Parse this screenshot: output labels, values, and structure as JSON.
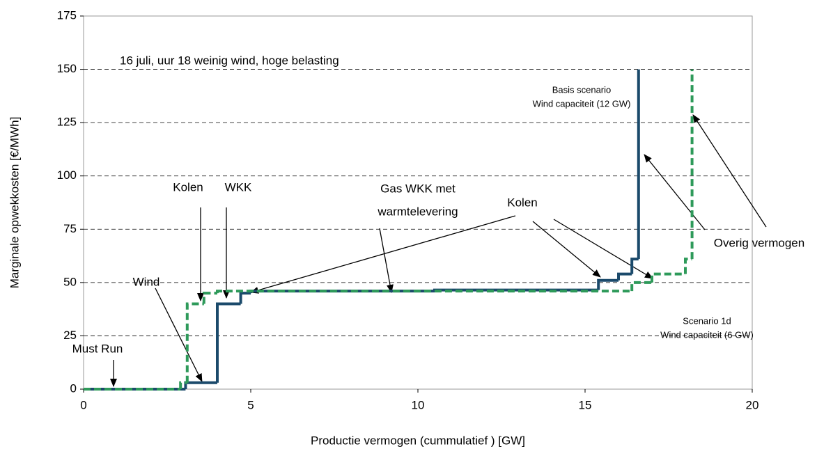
{
  "chart_data": {
    "type": "step",
    "x_label": "Productie vermogen (cummulatief ) [GW]",
    "y_label": "Marginale opwekkosten [€/MWh]",
    "xlim": [
      0,
      20
    ],
    "xticks": [
      0,
      5,
      10,
      15,
      20
    ],
    "ylim": [
      0,
      175
    ],
    "yticks": [
      0,
      25,
      50,
      75,
      100,
      125,
      150,
      175
    ],
    "grid": true,
    "series": [
      {
        "name": "Basis scenario",
        "color": "#1b4a6b",
        "dash": false,
        "x": [
          0,
          3.05,
          4.0,
          4.7,
          5.0,
          10.5,
          15.4,
          16.0,
          16.4,
          16.6
        ],
        "values": [
          0,
          3,
          40,
          45,
          46,
          46.5,
          51,
          54,
          61,
          150
        ]
      },
      {
        "name": "Scenario 1d",
        "color": "#2e9a5a",
        "dash": true,
        "x": [
          0,
          2.9,
          3.1,
          3.6,
          4.0,
          16.4,
          17.0,
          18.0,
          18.2
        ],
        "values": [
          0,
          3,
          40,
          45,
          46,
          50,
          54,
          61,
          150
        ]
      }
    ],
    "annotations": [
      "16 juli, uur 18   weinig wind, hoge belasting",
      "Basis scenario",
      "Wind capaciteit (12 GW)",
      "Kolen",
      "WKK",
      "Gas WKK met",
      "warmtelevering",
      "Kolen",
      "Overig vermogen",
      "Wind",
      "Scenario 1d",
      "Wind capaciteit (6 GW)",
      "Must Run"
    ]
  }
}
